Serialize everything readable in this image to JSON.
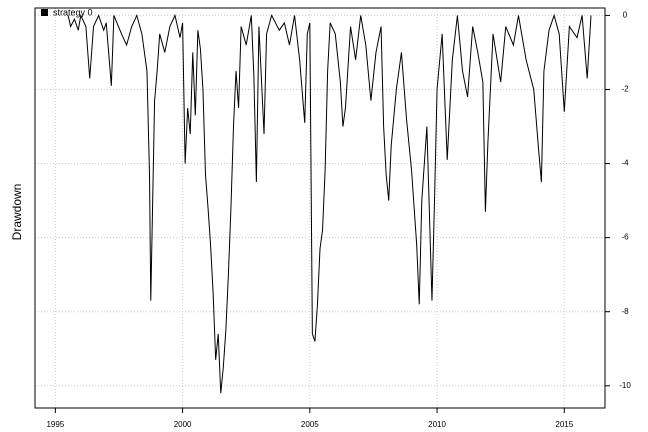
{
  "chart_data": {
    "type": "line",
    "y_label": "Drawdown",
    "xlim": [
      1994.2,
      2016.6
    ],
    "xticks": [
      1995,
      2000,
      2005,
      2010,
      2015
    ],
    "ylim": [
      -10.6,
      0.2
    ],
    "yticks": [
      0,
      -2,
      -4,
      -6,
      -8,
      -10
    ],
    "grid": true,
    "legend": "top-left",
    "x": [
      1995.5,
      1995.6,
      1995.75,
      1995.9,
      1996.0,
      1996.2,
      1996.35,
      1996.5,
      1996.7,
      1996.9,
      1997.0,
      1997.2,
      1997.3,
      1997.6,
      1997.8,
      1998.0,
      1998.2,
      1998.4,
      1998.6,
      1998.7,
      1998.75,
      1998.8,
      1998.9,
      1999.0,
      1999.1,
      1999.3,
      1999.5,
      1999.7,
      1999.9,
      2000.0,
      2000.1,
      2000.2,
      2000.3,
      2000.4,
      2000.5,
      2000.6,
      2000.7,
      2000.8,
      2000.9,
      2001.0,
      2001.1,
      2001.2,
      2001.3,
      2001.4,
      2001.5,
      2001.6,
      2001.7,
      2001.8,
      2001.9,
      2002.0,
      2002.1,
      2002.2,
      2002.3,
      2002.5,
      2002.7,
      2002.8,
      2002.9,
      2003.0,
      2003.2,
      2003.3,
      2003.5,
      2003.8,
      2004.0,
      2004.2,
      2004.4,
      2004.6,
      2004.8,
      2004.9,
      2005.0,
      2005.1,
      2005.2,
      2005.3,
      2005.4,
      2005.5,
      2005.6,
      2005.7,
      2005.8,
      2006.0,
      2006.2,
      2006.3,
      2006.4,
      2006.6,
      2006.8,
      2007.0,
      2007.2,
      2007.4,
      2007.6,
      2007.8,
      2007.9,
      2008.0,
      2008.1,
      2008.2,
      2008.4,
      2008.6,
      2008.8,
      2009.0,
      2009.2,
      2009.3,
      2009.4,
      2009.6,
      2009.8,
      2009.9,
      2010.0,
      2010.2,
      2010.4,
      2010.6,
      2010.8,
      2011.0,
      2011.2,
      2011.4,
      2011.6,
      2011.8,
      2011.9,
      2012.0,
      2012.2,
      2012.5,
      2012.7,
      2013.0,
      2013.2,
      2013.5,
      2013.8,
      2014.0,
      2014.1,
      2014.2,
      2014.4,
      2014.6,
      2014.8,
      2015.0,
      2015.2,
      2015.5,
      2015.7,
      2015.9,
      2016.05
    ],
    "series": [
      {
        "name": "strategy 0",
        "color": "#000000",
        "values": [
          0,
          -0.3,
          -0.1,
          -0.4,
          0,
          -0.3,
          -1.7,
          -0.3,
          0,
          -0.4,
          -0.2,
          -1.9,
          0,
          -0.5,
          -0.8,
          -0.3,
          0,
          -0.5,
          -1.5,
          -4.3,
          -7.7,
          -5.9,
          -2.3,
          -1.5,
          -0.5,
          -1.0,
          -0.3,
          0,
          -0.6,
          -0.2,
          -4.0,
          -2.5,
          -3.2,
          -1.0,
          -2.7,
          -0.4,
          -0.9,
          -2.0,
          -4.3,
          -5.2,
          -6.2,
          -7.5,
          -9.3,
          -8.6,
          -10.2,
          -9.5,
          -8.5,
          -7.0,
          -5.2,
          -3.0,
          -1.5,
          -2.5,
          -0.3,
          -0.8,
          0,
          -1.6,
          -4.5,
          -0.3,
          -3.2,
          -0.5,
          0,
          -0.4,
          -0.2,
          -0.8,
          0,
          -1.2,
          -2.9,
          -0.5,
          -0.2,
          -8.6,
          -8.8,
          -7.8,
          -6.3,
          -5.8,
          -4.2,
          -1.5,
          -0.2,
          -0.5,
          -1.8,
          -3.0,
          -2.5,
          -0.3,
          -1.2,
          0,
          -0.8,
          -2.3,
          -1.0,
          -0.3,
          -3.0,
          -4.3,
          -5.0,
          -3.5,
          -2.0,
          -1.0,
          -2.8,
          -4.2,
          -6.2,
          -7.8,
          -5.0,
          -3.0,
          -7.7,
          -5.0,
          -2.0,
          -0.5,
          -3.9,
          -1.2,
          0,
          -1.5,
          -2.2,
          -0.3,
          -1.0,
          -1.8,
          -5.3,
          -3.4,
          -0.5,
          -1.8,
          -0.3,
          -0.8,
          0,
          -1.2,
          -2.0,
          -3.7,
          -4.5,
          -1.5,
          -0.4,
          0,
          -0.5,
          -2.6,
          -0.3,
          -0.6,
          0,
          -1.7,
          0
        ]
      }
    ]
  }
}
